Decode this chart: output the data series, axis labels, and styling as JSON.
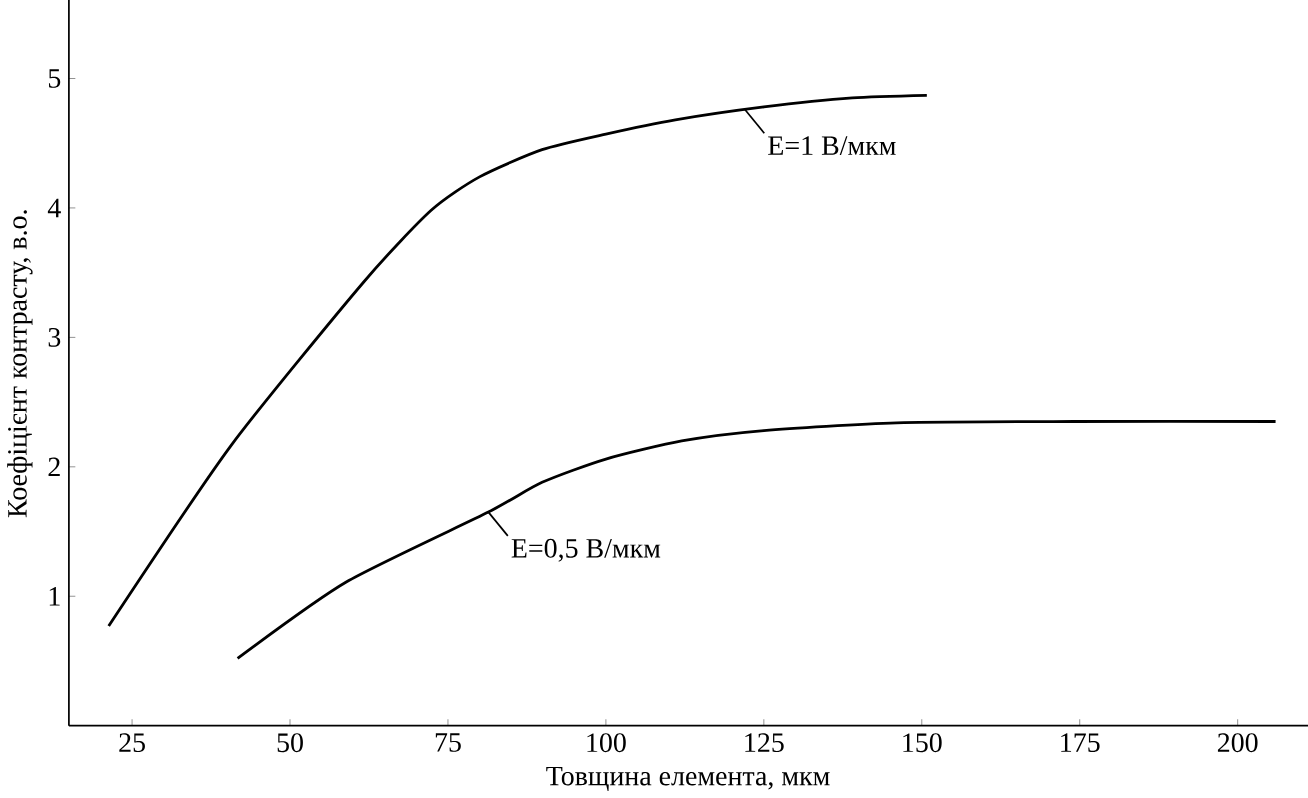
{
  "chart_data": {
    "type": "line",
    "xlabel": "Товщина елемента, мкм",
    "ylabel": "Коефіцієнт контрасту, в.о.",
    "xlim": [
      15,
      211
    ],
    "ylim": [
      0,
      5.6
    ],
    "xticks": [
      25,
      50,
      75,
      100,
      125,
      150,
      175,
      200
    ],
    "yticks": [
      1,
      2,
      3,
      4,
      5
    ],
    "grid": false,
    "marker": "none",
    "line_style": "solid",
    "series": [
      {
        "color": "#000000",
        "x": [
          21.3,
          40.6,
          61.7,
          72.3,
          80,
          89.9,
          100,
          111,
          125,
          139,
          150.8
        ],
        "values": [
          0.77,
          2.16,
          3.43,
          3.98,
          4.24,
          4.45,
          4.57,
          4.68,
          4.78,
          4.85,
          4.87
        ]
      },
      {
        "color": "#000000",
        "x": [
          41.7,
          58.9,
          81.4,
          89.9,
          100,
          112,
          125,
          146,
          174,
          206
        ],
        "values": [
          0.52,
          1.11,
          1.65,
          1.88,
          2.06,
          2.2,
          2.28,
          2.34,
          2.35,
          2.35
        ]
      }
    ],
    "annotations": [
      {
        "text": "E=1 В/мкм",
        "x": 122,
        "y": 4.76
      },
      {
        "text": "E=0,5 В/мкм",
        "x": 81.4,
        "y": 1.65
      }
    ]
  }
}
